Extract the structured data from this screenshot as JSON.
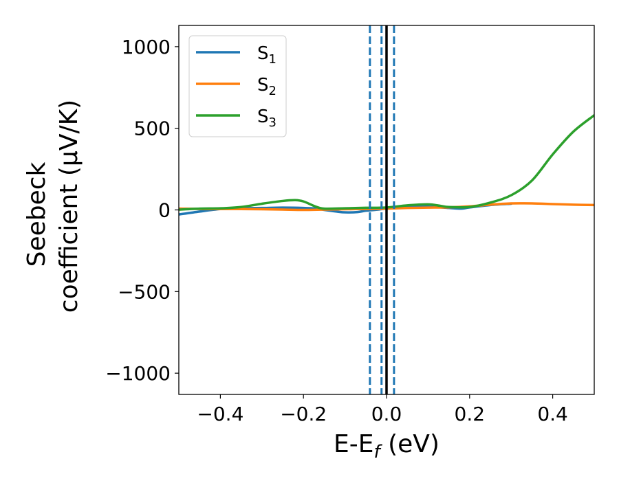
{
  "chart_data": {
    "type": "line",
    "xlabel": "E-E_f (eV)",
    "xlabel_parts": {
      "pre": "E-E",
      "sub": "f",
      "post": " (eV)"
    },
    "ylabel": "Seebeck coefficient (μV/K)",
    "ylabel_lines": [
      "Seebeck",
      "coefficient  (μV/K)"
    ],
    "xlim": [
      -0.5,
      0.5
    ],
    "ylim": [
      -1130,
      1130
    ],
    "xticks": [
      -0.4,
      -0.2,
      0.0,
      0.2,
      0.4
    ],
    "xtick_labels": [
      "−0.4",
      "−0.2",
      "0.0",
      "0.2",
      "0.4"
    ],
    "yticks": [
      -1000,
      -500,
      0,
      500,
      1000
    ],
    "ytick_labels": [
      "−1000",
      "−500",
      "0",
      "500",
      "1000"
    ],
    "grid": false,
    "legend": "top-left",
    "vertical_lines": [
      {
        "x": -0.04,
        "style": "dashed",
        "color": "#1f77b4"
      },
      {
        "x": -0.012,
        "style": "dashed",
        "color": "#1f77b4"
      },
      {
        "x": 0.018,
        "style": "dashed",
        "color": "#1f77b4"
      },
      {
        "x": 0.0,
        "style": "solid",
        "color": "#000000"
      }
    ],
    "series": [
      {
        "name": "S1",
        "label_base": "S",
        "label_sub": "1",
        "color": "#1f77b4",
        "x": [
          -0.5,
          -0.45,
          -0.4,
          -0.35,
          -0.3,
          -0.25,
          -0.2,
          -0.17,
          -0.15,
          -0.12,
          -0.1,
          -0.07,
          -0.05,
          -0.02,
          0.0,
          0.05,
          0.1,
          0.15,
          0.18,
          0.2,
          0.25,
          0.3
        ],
        "y": [
          -28,
          -10,
          5,
          10,
          12,
          14,
          12,
          8,
          0,
          -10,
          -15,
          -13,
          -5,
          2,
          8,
          16,
          20,
          12,
          8,
          15,
          30,
          38
        ]
      },
      {
        "name": "S2",
        "label_base": "S",
        "label_sub": "2",
        "color": "#ff7f0e",
        "x": [
          -0.5,
          -0.45,
          -0.4,
          -0.35,
          -0.3,
          -0.25,
          -0.2,
          -0.15,
          -0.1,
          -0.05,
          0.0,
          0.05,
          0.1,
          0.15,
          0.2,
          0.25,
          0.3,
          0.35,
          0.4,
          0.45,
          0.5
        ],
        "y": [
          8,
          6,
          5,
          5,
          4,
          2,
          0,
          2,
          4,
          6,
          8,
          12,
          14,
          16,
          22,
          32,
          40,
          40,
          36,
          32,
          30
        ]
      },
      {
        "name": "S3",
        "label_base": "S",
        "label_sub": "3",
        "color": "#2ca02c",
        "x": [
          -0.5,
          -0.45,
          -0.4,
          -0.35,
          -0.3,
          -0.25,
          -0.22,
          -0.2,
          -0.17,
          -0.15,
          -0.1,
          -0.05,
          0.0,
          0.05,
          0.1,
          0.13,
          0.15,
          0.2,
          0.25,
          0.3,
          0.35,
          0.4,
          0.45,
          0.5
        ],
        "y": [
          2,
          8,
          10,
          18,
          38,
          55,
          60,
          52,
          20,
          8,
          10,
          13,
          15,
          28,
          34,
          25,
          18,
          18,
          45,
          90,
          180,
          340,
          480,
          580
        ]
      }
    ]
  }
}
